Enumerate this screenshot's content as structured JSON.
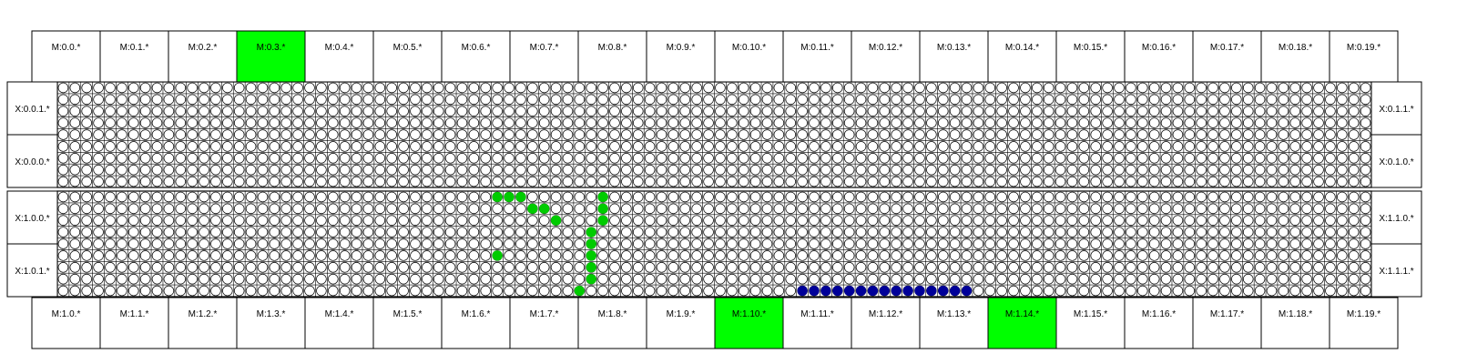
{
  "top_modules": [
    "M:0.0.*",
    "M:0.1.*",
    "M:0.2.*",
    "M:0.3.*",
    "M:0.4.*",
    "M:0.5.*",
    "M:0.6.*",
    "M:0.7.*",
    "M:0.8.*",
    "M:0.9.*",
    "M:0.10.*",
    "M:0.11.*",
    "M:0.12.*",
    "M:0.13.*",
    "M:0.14.*",
    "M:0.15.*",
    "M:0.16.*",
    "M:0.17.*",
    "M:0.18.*",
    "M:0.19.*"
  ],
  "bottom_modules": [
    "M:1.0.*",
    "M:1.1.*",
    "M:1.2.*",
    "M:1.3.*",
    "M:1.4.*",
    "M:1.5.*",
    "M:1.6.*",
    "M:1.7.*",
    "M:1.8.*",
    "M:1.9.*",
    "M:1.10.*",
    "M:1.11.*",
    "M:1.12.*",
    "M:1.13.*",
    "M:1.14.*",
    "M:1.15.*",
    "M:1.16.*",
    "M:1.17.*",
    "M:1.18.*",
    "M:1.19.*"
  ],
  "highlighted_top": [
    3
  ],
  "highlighted_bottom": [
    10,
    14
  ],
  "x_blocks": [
    {
      "left_top": "X:0.0.1.*",
      "left_bottom": "X:0.0.0.*",
      "right_top": "X:0.1.1.*",
      "right_bottom": "X:0.1.0.*"
    },
    {
      "left_top": "X:1.0.0.*",
      "left_bottom": "X:1.0.1.*",
      "right_top": "X:1.1.0.*",
      "right_bottom": "X:1.1.1.*"
    }
  ],
  "grid": {
    "columns": 112,
    "rows_per_block": 9
  },
  "colors": {
    "highlight": "#00ff00",
    "green_node": "#00cc00",
    "blue_node": "#000099",
    "line": "#000000",
    "background": "#ffffff"
  },
  "active_nodes": {
    "block": 1,
    "green": [
      [
        37,
        0
      ],
      [
        38,
        0
      ],
      [
        39,
        0
      ],
      [
        40,
        1
      ],
      [
        41,
        1
      ],
      [
        42,
        2
      ],
      [
        46,
        0
      ],
      [
        46,
        1
      ],
      [
        46,
        2
      ],
      [
        45,
        3
      ],
      [
        45,
        4
      ],
      [
        45,
        5
      ],
      [
        45,
        6
      ],
      [
        45,
        7
      ],
      [
        44,
        8
      ],
      [
        37,
        5
      ]
    ],
    "blue": [
      [
        63,
        8
      ],
      [
        64,
        8
      ],
      [
        65,
        8
      ],
      [
        66,
        8
      ],
      [
        67,
        8
      ],
      [
        68,
        8
      ],
      [
        69,
        8
      ],
      [
        70,
        8
      ],
      [
        71,
        8
      ],
      [
        72,
        8
      ],
      [
        73,
        8
      ],
      [
        74,
        8
      ],
      [
        75,
        8
      ],
      [
        76,
        8
      ],
      [
        77,
        8
      ]
    ]
  }
}
